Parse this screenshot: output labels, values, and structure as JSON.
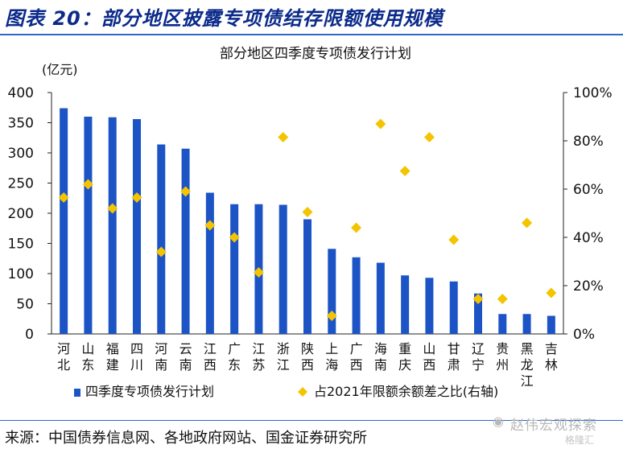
{
  "header": {
    "figure_title": "图表 20：部分地区披露专项债结存限额使用规模"
  },
  "footer": {
    "source": "来源：中国债券信息网、各地政府网站、国金证券研究所"
  },
  "watermark": {
    "text": "赵伟宏观探索",
    "sub": "格隆汇"
  },
  "chart_data": {
    "type": "bar",
    "title": "部分地区四季度专项债发行计划",
    "ylabel": "(亿元)",
    "ylim": [
      0,
      400
    ],
    "yticks": [
      0,
      50,
      100,
      150,
      200,
      250,
      300,
      350,
      400
    ],
    "y2lim": [
      0,
      1
    ],
    "y2ticks": [
      "0%",
      "20%",
      "40%",
      "60%",
      "80%",
      "100%"
    ],
    "categories": [
      "河北",
      "山东",
      "福建",
      "四川",
      "河南",
      "云南",
      "江西",
      "广东",
      "江苏",
      "浙江",
      "陕西",
      "上海",
      "广西",
      "海南",
      "重庆",
      "山西",
      "甘肃",
      "辽宁",
      "贵州",
      "黑龙江",
      "吉林"
    ],
    "series": [
      {
        "name": "四季度专项债发行计划",
        "kind": "bar",
        "axis": "left",
        "color": "#1c54c6",
        "values": [
          374,
          360,
          359,
          356,
          314,
          307,
          234,
          215,
          215,
          214,
          190,
          141,
          127,
          118,
          97,
          93,
          87,
          67,
          33,
          33,
          30
        ]
      },
      {
        "name": "占2021年限额余额差之比(右轴)",
        "kind": "scatter",
        "axis": "right",
        "color": "#f5c400",
        "values": [
          0.565,
          0.62,
          0.52,
          0.565,
          0.34,
          0.59,
          0.45,
          0.4,
          0.255,
          0.815,
          0.505,
          0.075,
          0.44,
          0.87,
          0.675,
          0.815,
          0.39,
          0.145,
          0.145,
          0.46,
          0.17
        ]
      }
    ],
    "legend_position": "bottom",
    "grid": false
  }
}
